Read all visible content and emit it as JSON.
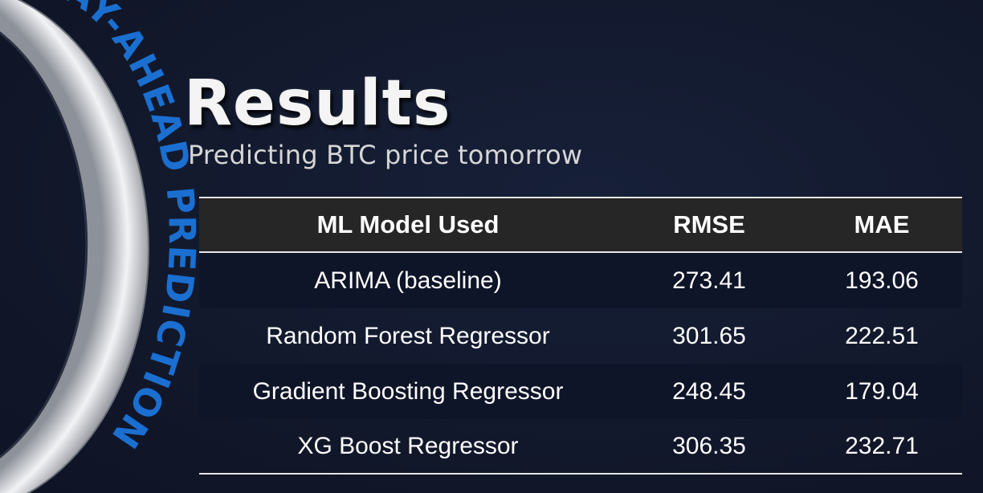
{
  "banner": {
    "arc_text": "DAY-AHEAD PREDICTION",
    "arc_color": "#1a6fd1",
    "ring_color": "#c9ccd2"
  },
  "slide": {
    "title": "Results",
    "subtitle": "Predicting BTC price tomorrow"
  },
  "table": {
    "headers": [
      "ML Model Used",
      "RMSE",
      "MAE"
    ],
    "rows": [
      {
        "model": "ARIMA (baseline)",
        "rmse": "273.41",
        "mae": "193.06"
      },
      {
        "model": "Random Forest Regressor",
        "rmse": "301.65",
        "mae": "222.51"
      },
      {
        "model": "Gradient Boosting Regressor",
        "rmse": "248.45",
        "mae": "179.04"
      },
      {
        "model": "XG Boost Regressor",
        "rmse": "306.35",
        "mae": "232.71"
      }
    ]
  },
  "colors": {
    "background": "#131a2e",
    "header_row": "#262626",
    "alt_row": "#0f1528",
    "text": "#ffffff"
  }
}
